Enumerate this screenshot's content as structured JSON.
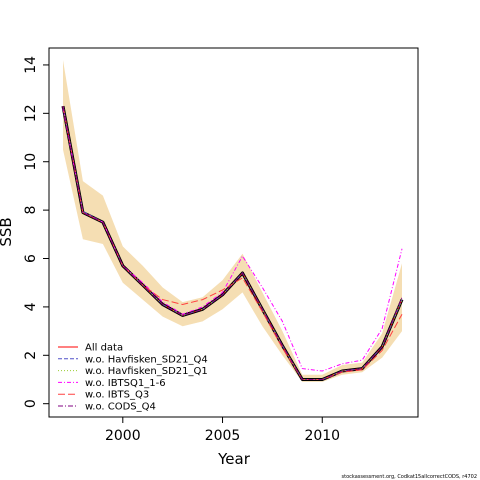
{
  "chart_data": {
    "type": "line",
    "title": "",
    "xlabel": "Year",
    "ylabel": "SSB",
    "xlim": [
      1996.3,
      2014.8
    ],
    "ylim": [
      -0.55,
      14.7
    ],
    "x_ticks": [
      2000,
      2005,
      2010
    ],
    "y_ticks": [
      0,
      2,
      4,
      6,
      8,
      10,
      12,
      14
    ],
    "grid": false,
    "legend_position": "bottom-left",
    "x": [
      1997,
      1998,
      1999,
      2000,
      2001,
      2002,
      2003,
      2004,
      2005,
      2006,
      2007,
      2008,
      2009,
      2010,
      2011,
      2012,
      2013,
      2014
    ],
    "band": {
      "color": "#f5deb3",
      "lower": [
        10.5,
        6.8,
        6.6,
        5.0,
        4.3,
        3.6,
        3.2,
        3.4,
        3.9,
        4.6,
        3.2,
        2.0,
        0.9,
        0.9,
        1.2,
        1.3,
        1.9,
        3.0
      ],
      "upper": [
        14.2,
        9.2,
        8.6,
        6.5,
        5.7,
        4.8,
        4.2,
        4.4,
        5.1,
        6.2,
        4.6,
        3.0,
        1.2,
        1.2,
        1.6,
        1.7,
        2.9,
        5.8
      ]
    },
    "series": [
      {
        "name": "All data",
        "color": "#ff0000",
        "dash": "",
        "values": [
          12.3,
          7.9,
          7.5,
          5.7,
          4.9,
          4.1,
          3.65,
          3.9,
          4.5,
          5.4,
          3.9,
          2.4,
          1.0,
          1.0,
          1.35,
          1.45,
          2.35,
          4.3
        ]
      },
      {
        "name": "w.o. Havfisken_SD21_Q4",
        "color": "#5050c8",
        "dash": "4,2",
        "values": [
          12.3,
          7.95,
          7.5,
          5.7,
          4.9,
          4.1,
          3.65,
          3.9,
          4.5,
          5.4,
          3.9,
          2.4,
          1.0,
          1.0,
          1.35,
          1.45,
          2.35,
          4.3
        ]
      },
      {
        "name": "w.o. Havfisken_SD21_Q1",
        "color": "#9acd32",
        "dash": "1,2",
        "values": [
          12.3,
          7.9,
          7.5,
          5.7,
          4.9,
          4.1,
          3.65,
          3.9,
          4.5,
          5.4,
          3.9,
          2.4,
          1.0,
          1.0,
          1.35,
          1.45,
          2.35,
          4.3
        ]
      },
      {
        "name": "w.o. IBTSQ1_1-6",
        "color": "#ff00ff",
        "dash": "4,2,1,2",
        "values": [
          12.2,
          7.9,
          7.5,
          5.7,
          5.0,
          4.2,
          3.7,
          4.0,
          4.6,
          6.1,
          4.8,
          3.4,
          1.45,
          1.35,
          1.65,
          1.8,
          3.1,
          6.4
        ]
      },
      {
        "name": "w.o. IBTS_Q3",
        "color": "#ff4040",
        "dash": "7,3",
        "values": [
          12.3,
          7.9,
          7.5,
          5.7,
          4.9,
          4.3,
          4.1,
          4.3,
          4.7,
          5.2,
          3.8,
          2.3,
          1.0,
          1.0,
          1.3,
          1.4,
          2.2,
          3.7
        ]
      },
      {
        "name": "w.o. CODS_Q4",
        "color": "#800080",
        "dash": "5,2,1,2",
        "values": [
          12.3,
          7.9,
          7.5,
          5.7,
          4.9,
          4.1,
          3.65,
          3.9,
          4.5,
          5.4,
          3.9,
          2.4,
          1.0,
          1.0,
          1.35,
          1.45,
          2.35,
          4.4
        ]
      }
    ],
    "main_line": {
      "color": "#000000",
      "values": [
        12.3,
        7.9,
        7.5,
        5.7,
        4.9,
        4.1,
        3.65,
        3.9,
        4.5,
        5.4,
        3.9,
        2.4,
        1.0,
        1.0,
        1.35,
        1.45,
        2.35,
        4.3
      ]
    }
  },
  "footer": {
    "text": "stockassessment.org, Codkat15allcorrectCODS, r4702"
  }
}
